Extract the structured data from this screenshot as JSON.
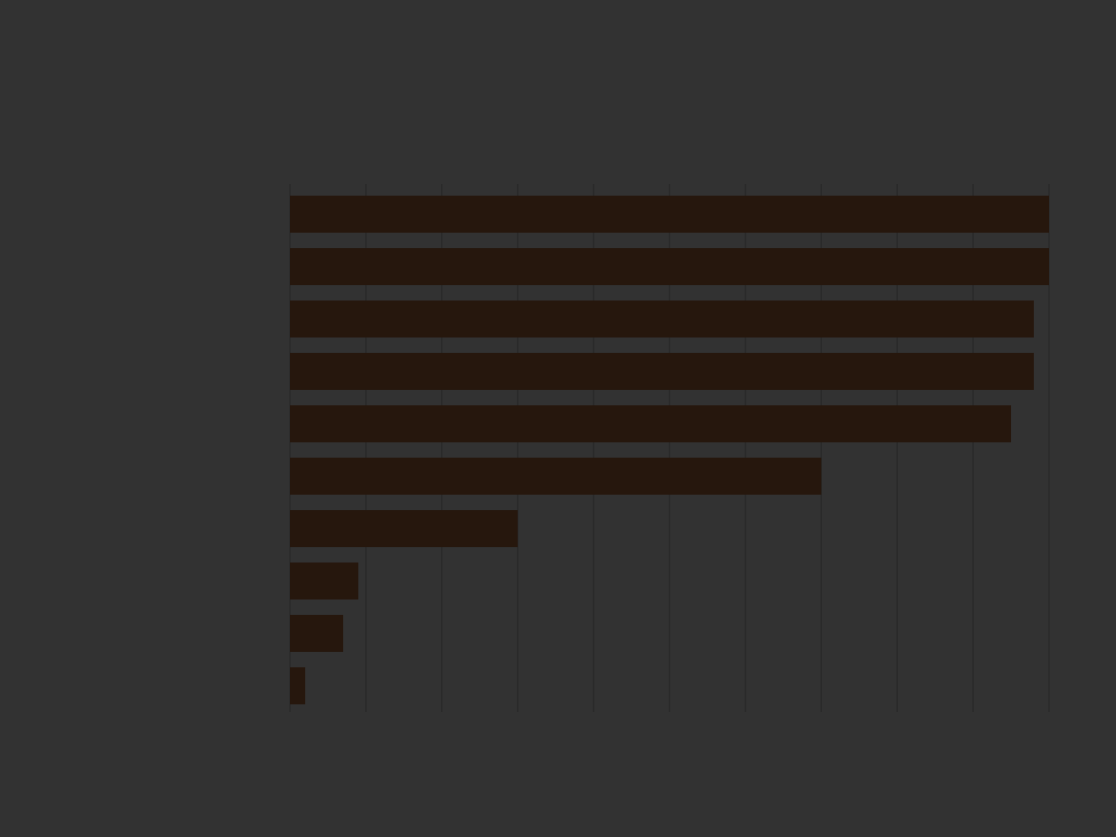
{
  "chart_data": {
    "type": "bar",
    "orientation": "horizontal",
    "title": "",
    "xlabel": "",
    "ylabel": "",
    "categories": [
      "",
      "",
      "",
      "",
      "",
      "",
      "",
      "",
      "",
      ""
    ],
    "values": [
      100,
      100,
      98,
      98,
      95,
      70,
      30,
      9,
      7,
      2
    ],
    "xlim": [
      0,
      100
    ],
    "x_tick_values": [
      0,
      10,
      20,
      30,
      40,
      50,
      60,
      70,
      80,
      90,
      100
    ],
    "x_tick_labels": [
      "",
      "",
      "",
      "",
      "",
      "",
      "",
      "",
      "",
      "",
      ""
    ],
    "x_tick_suffix": "%",
    "grid": true,
    "colors": {
      "background": "#323232",
      "bar": "#26170d",
      "grid": "#2a2a2a",
      "text": "#ffffff"
    }
  }
}
